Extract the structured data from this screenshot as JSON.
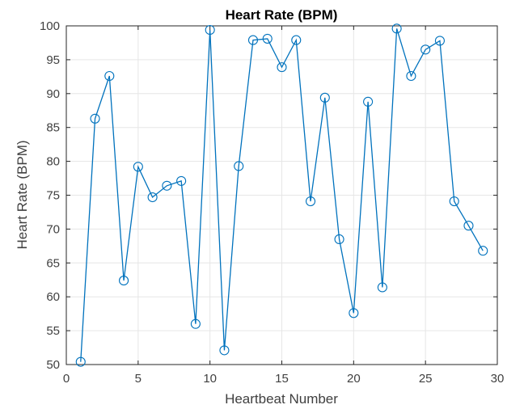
{
  "chart_data": {
    "type": "line",
    "title": "Heart Rate (BPM)",
    "xlabel": "Heartbeat Number",
    "ylabel": "Heart Rate (BPM)",
    "xlim": [
      0,
      30
    ],
    "ylim": [
      50,
      100
    ],
    "xticks": [
      0,
      5,
      10,
      15,
      20,
      25,
      30
    ],
    "yticks": [
      50,
      55,
      60,
      65,
      70,
      75,
      80,
      85,
      90,
      95,
      100
    ],
    "grid": true,
    "marker": "circle",
    "series": [
      {
        "color": "#0072BD",
        "x": [
          1,
          2,
          3,
          4,
          5,
          6,
          7,
          8,
          9,
          10,
          11,
          12,
          13,
          14,
          15,
          16,
          17,
          18,
          19,
          20,
          21,
          22,
          23,
          24,
          25,
          26,
          27,
          28,
          29
        ],
        "y": [
          50.4,
          86.3,
          92.6,
          62.4,
          79.2,
          74.7,
          76.4,
          77.1,
          56.0,
          99.4,
          52.1,
          79.3,
          97.9,
          98.1,
          93.9,
          97.9,
          74.1,
          89.4,
          68.5,
          57.6,
          88.8,
          61.4,
          99.6,
          92.6,
          96.5,
          97.8,
          74.1,
          70.5,
          66.8
        ]
      }
    ]
  }
}
